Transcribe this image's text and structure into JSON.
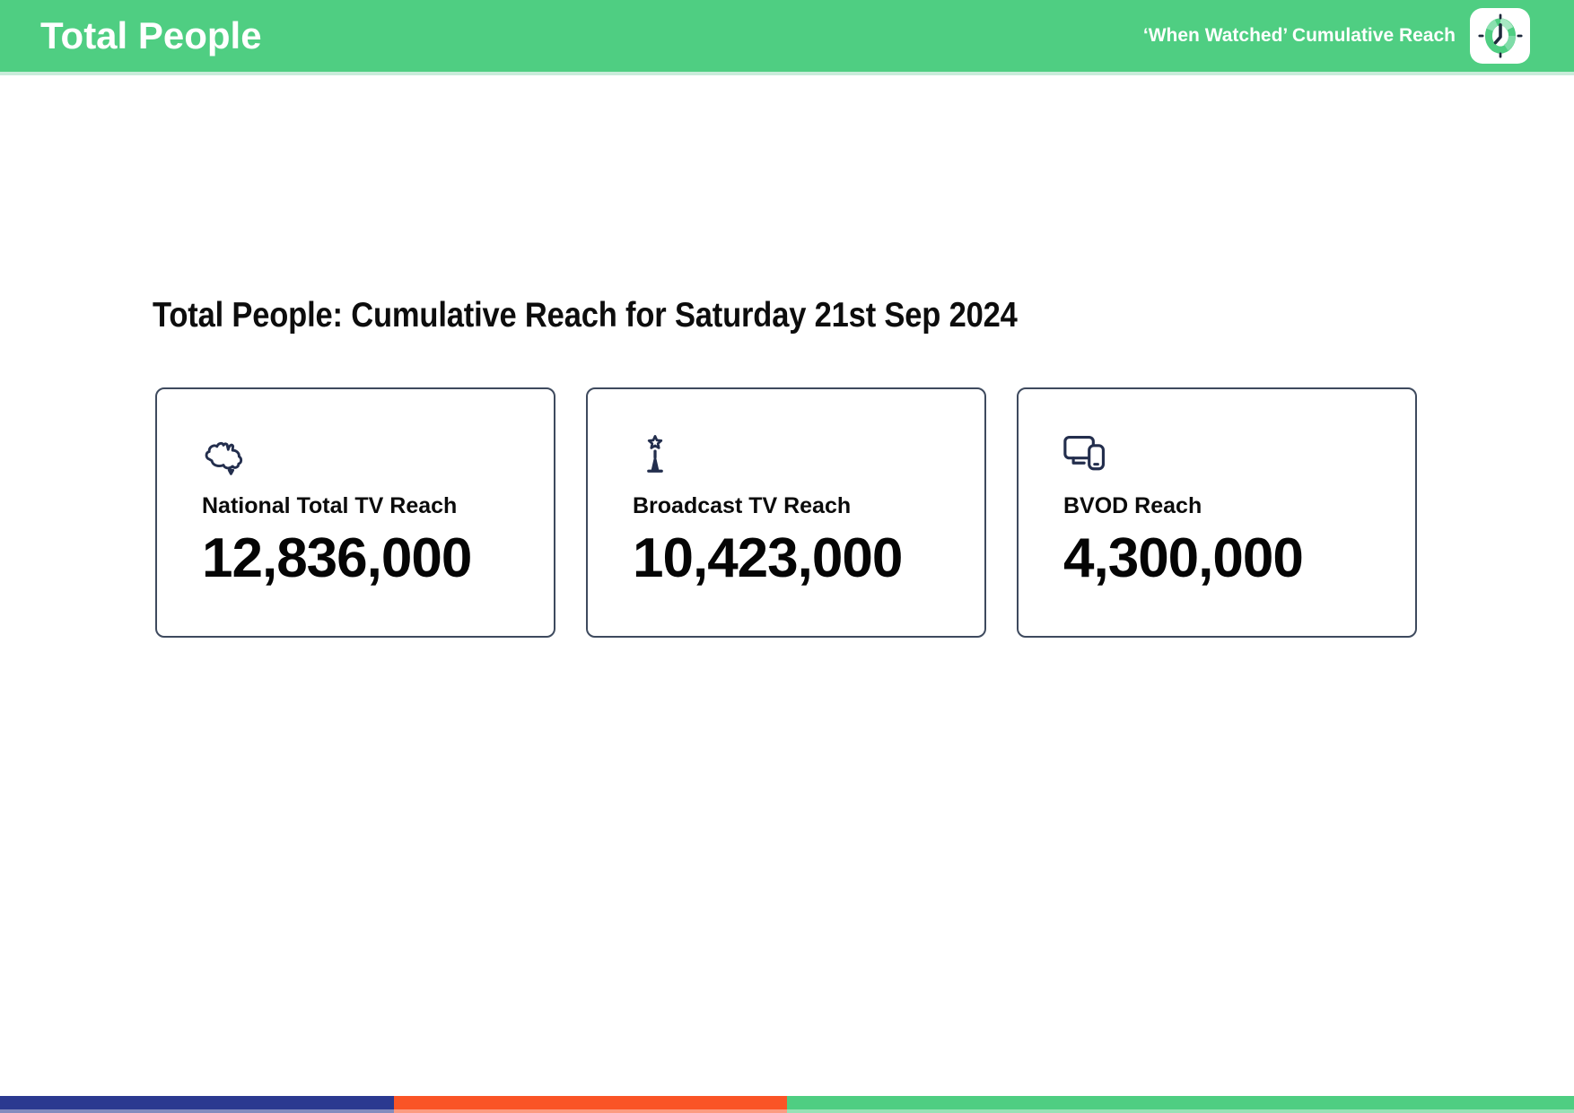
{
  "header": {
    "title": "Total People",
    "subtitle": "‘When Watched’ Cumulative Reach",
    "logo": "clock-icon",
    "bg_color": "#4FCE82"
  },
  "main": {
    "heading": "Total People: Cumulative Reach for Saturday 21st Sep 2024",
    "icon_color": "#232E4D",
    "card_border_color": "#3E4A5E",
    "cards": [
      {
        "icon": "australia-map-icon",
        "label": "National Total TV Reach",
        "value": "12,836,000"
      },
      {
        "icon": "broadcast-tower-icon",
        "label": "Broadcast TV Reach",
        "value": "10,423,000"
      },
      {
        "icon": "devices-icon",
        "label": "BVOD Reach",
        "value": "4,300,000"
      }
    ]
  },
  "footer": {
    "segments": [
      {
        "name": "blue",
        "color": "#2B3990",
        "width_pct": 25
      },
      {
        "name": "orange",
        "color": "#FA5426",
        "width_pct": 25
      },
      {
        "name": "green",
        "color": "#4FCE82",
        "width_pct": 50
      }
    ]
  }
}
